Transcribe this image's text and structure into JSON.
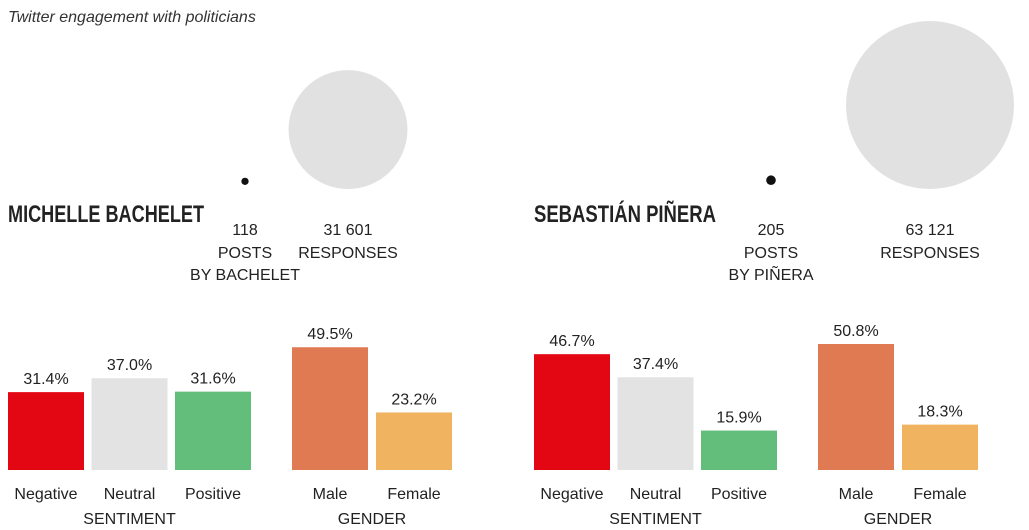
{
  "title": "Twitter engagement with politicians",
  "bubble_color": "#e1e1e1",
  "dot_color": "#111111",
  "politicians": [
    {
      "name": "MICHELLE BACHELET",
      "posts": 118,
      "posts_label": [
        "POSTS",
        "BY BACHELET"
      ],
      "responses": 31601,
      "responses_value_label": "31 601",
      "responses_label": "RESPONSES",
      "sentiment": {
        "label": "SENTIMENT",
        "categories": [
          "Negative",
          "Neutral",
          "Positive"
        ],
        "values": [
          31.4,
          37.0,
          31.6
        ],
        "value_labels": [
          "31.4%",
          "37.0%",
          "31.6%"
        ],
        "colors": [
          "#e30613",
          "#e3e3e3",
          "#63be7b"
        ]
      },
      "gender": {
        "label": "GENDER",
        "categories": [
          "Male",
          "Female"
        ],
        "values": [
          49.5,
          23.2
        ],
        "value_labels": [
          "49.5%",
          "23.2%"
        ],
        "colors": [
          "#e07a53",
          "#f0b35f"
        ]
      }
    },
    {
      "name": "SEBASTIÁN PIÑERA",
      "posts": 205,
      "posts_label": [
        "POSTS",
        "BY PIÑERA"
      ],
      "responses": 63121,
      "responses_value_label": "63 121",
      "responses_label": "RESPONSES",
      "sentiment": {
        "label": "SENTIMENT",
        "categories": [
          "Negative",
          "Neutral",
          "Positive"
        ],
        "values": [
          46.7,
          37.4,
          15.9
        ],
        "value_labels": [
          "46.7%",
          "37.4%",
          "15.9%"
        ],
        "colors": [
          "#e30613",
          "#e3e3e3",
          "#63be7b"
        ]
      },
      "gender": {
        "label": "GENDER",
        "categories": [
          "Male",
          "Female"
        ],
        "values": [
          50.8,
          18.3
        ],
        "value_labels": [
          "50.8%",
          "18.3%"
        ],
        "colors": [
          "#e07a53",
          "#f0b35f"
        ]
      }
    }
  ]
}
